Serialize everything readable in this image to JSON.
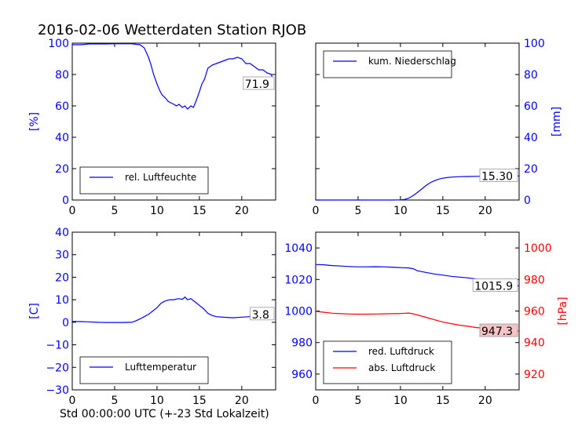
{
  "title": "2016-02-06 Wetterdaten Station RJOB",
  "x_footer": "Std 00:00:00 UTC (+-23 Std Lokalzeit)",
  "colors": {
    "blue": "#0000ff",
    "red": "#ff0000",
    "annot_red_bg": "#f4c4c4"
  },
  "chart_data": [
    {
      "id": "humidity",
      "type": "line",
      "ylabel": "[%]",
      "xlim": [
        0,
        24
      ],
      "ylim": [
        0,
        100
      ],
      "xticks": [
        "0",
        "5",
        "10",
        "15",
        "20"
      ],
      "yticks": [
        "0",
        "20",
        "40",
        "60",
        "80",
        "100"
      ],
      "legend": "top-none",
      "legend_loc": "lower-left",
      "series": [
        {
          "name": "rel. Luftfeuchte",
          "color": "#0000ff",
          "x": [
            0,
            1,
            2,
            3,
            4,
            5,
            6,
            7,
            8,
            8.5,
            9,
            9.3,
            9.6,
            10,
            10.3,
            10.6,
            11,
            11.3,
            11.6,
            12,
            12.3,
            12.6,
            13,
            13.3,
            13.6,
            14,
            14.3,
            14.6,
            15,
            15.3,
            15.6,
            16,
            16.5,
            17,
            17.5,
            18,
            18.5,
            19,
            19.5,
            20,
            20.5,
            21,
            21.5,
            22,
            22.5,
            23,
            23.5,
            23.8
          ],
          "y": [
            99,
            99,
            99.5,
            99.5,
            99.5,
            99.6,
            99.6,
            99.6,
            99,
            97,
            91,
            86,
            80,
            74,
            70,
            67,
            65,
            63,
            62,
            61,
            60,
            61,
            59,
            60,
            58,
            60,
            59,
            63,
            69,
            74,
            77,
            84,
            86,
            87,
            88,
            89,
            90,
            90,
            91,
            90,
            87,
            87,
            85,
            83,
            83,
            81,
            80,
            74
          ]
        }
      ],
      "annotation": "71.9"
    },
    {
      "id": "precip",
      "type": "line",
      "ylabel": "[mm]",
      "xlim": [
        0,
        24
      ],
      "ylim": [
        0,
        100
      ],
      "xticks": [
        "0",
        "5",
        "10",
        "15",
        "20"
      ],
      "yticks": [
        "0",
        "20",
        "40",
        "60",
        "80",
        "100"
      ],
      "legend_loc": "upper-left",
      "series": [
        {
          "name": "kum. Niederschlag",
          "color": "#0000ff",
          "x": [
            0,
            2,
            4,
            6,
            8,
            9,
            10,
            10.5,
            11,
            11.5,
            12,
            12.5,
            13,
            13.5,
            14,
            14.5,
            15,
            15.5,
            16,
            17,
            18,
            19,
            20,
            21,
            22,
            23,
            24
          ],
          "y": [
            0,
            0,
            0,
            0,
            0,
            0,
            0.1,
            0.4,
            1.2,
            2.8,
            4.8,
            7,
            9.2,
            11,
            12.3,
            13.3,
            13.9,
            14.3,
            14.6,
            14.9,
            15,
            15.1,
            15.2,
            15.25,
            15.3,
            15.3,
            15.3
          ]
        }
      ],
      "annotation": "15.30"
    },
    {
      "id": "temperature",
      "type": "line",
      "ylabel": "[C]",
      "xlim": [
        0,
        24
      ],
      "ylim": [
        -30,
        40
      ],
      "xticks": [
        "0",
        "5",
        "10",
        "15",
        "20"
      ],
      "yticks": [
        "−30",
        "−20",
        "−10",
        "0",
        "10",
        "20",
        "30",
        "40"
      ],
      "legend_loc": "lower-left",
      "series": [
        {
          "name": "Lufttemperatur",
          "color": "#0000ff",
          "x": [
            0,
            1,
            2,
            3,
            4,
            5,
            6,
            7,
            7.5,
            8,
            8.5,
            9,
            9.5,
            10,
            10.5,
            11,
            11.5,
            12,
            12.5,
            13,
            13.3,
            13.6,
            14,
            14.5,
            15,
            15.5,
            16,
            16.5,
            17,
            18,
            19,
            20,
            21,
            22,
            23,
            23.8
          ],
          "y": [
            0.4,
            0.3,
            0.2,
            0,
            -0.1,
            -0.1,
            -0.1,
            0,
            0.6,
            1.5,
            2.5,
            3.5,
            5,
            6.5,
            8.5,
            9.5,
            10,
            10,
            10.5,
            10.2,
            11.2,
            10,
            10.5,
            9,
            7.5,
            6,
            4,
            3,
            2.5,
            2.2,
            2,
            2.3,
            2.5,
            2.7,
            3,
            3.5
          ]
        }
      ],
      "annotation": "3.8"
    },
    {
      "id": "pressure",
      "type": "line",
      "xlim": [
        0,
        24
      ],
      "ylim": [
        950,
        1050
      ],
      "y2label": "[hPa]",
      "y2lim": [
        910,
        1010
      ],
      "xticks": [
        "0",
        "5",
        "10",
        "15",
        "20"
      ],
      "yticks": [
        "960",
        "980",
        "1000",
        "1020",
        "1040"
      ],
      "y2ticks": [
        "920",
        "940",
        "960",
        "980",
        "1000"
      ],
      "legend_loc": "lower-left",
      "series": [
        {
          "name": "red. Luftdruck",
          "color": "#0000ff",
          "axis": "left",
          "x": [
            0,
            1,
            2,
            3,
            4,
            5,
            6,
            7,
            8,
            9,
            10,
            11,
            11.5,
            12,
            13,
            14,
            15,
            16,
            17,
            18,
            19,
            20,
            21,
            22,
            23,
            24
          ],
          "y": [
            1029.5,
            1029.3,
            1028.8,
            1028.5,
            1028.2,
            1028,
            1028,
            1028.1,
            1028,
            1027.8,
            1027.5,
            1027.3,
            1026.8,
            1025.5,
            1024.5,
            1023.5,
            1022.8,
            1022,
            1021.5,
            1021,
            1020.3,
            1019,
            1018,
            1017.3,
            1016.5,
            1015.9
          ]
        },
        {
          "name": "abs. Luftdruck",
          "color": "#ff0000",
          "axis": "right",
          "x": [
            0,
            1,
            2,
            3,
            4,
            5,
            6,
            7,
            8,
            9,
            10,
            10.5,
            11,
            11.5,
            12,
            13,
            14,
            15,
            16,
            17,
            18,
            19,
            20,
            21,
            22,
            23,
            24
          ],
          "y": [
            959.8,
            959.2,
            958.6,
            958.3,
            958.1,
            958,
            958,
            958.1,
            958.2,
            958.3,
            958.4,
            958.6,
            958.7,
            958.2,
            957.5,
            956,
            954.5,
            953,
            952,
            951,
            950.3,
            949.5,
            949,
            948.6,
            948,
            947.5,
            947.3
          ]
        }
      ],
      "annotation": "1015.9",
      "annotation2": "947.3"
    }
  ]
}
